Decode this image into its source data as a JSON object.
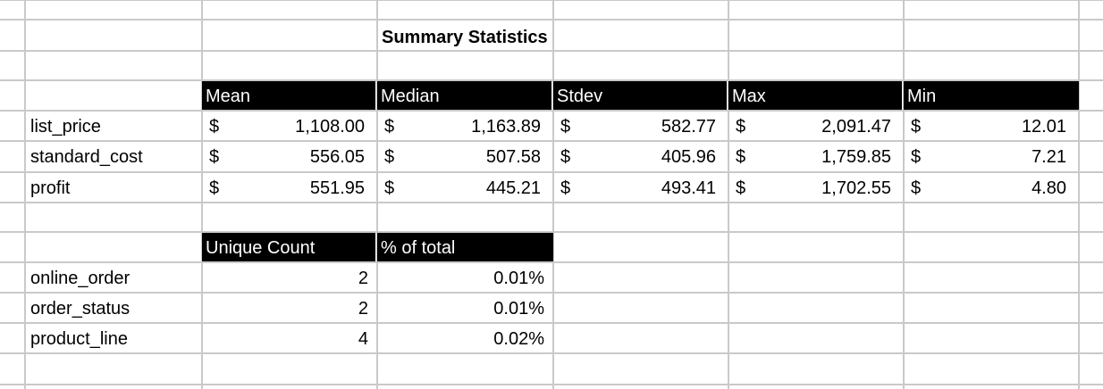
{
  "title": "Summary Statistics",
  "stats_headers": [
    "Mean",
    "Median",
    "Stdev",
    "Max",
    "Min"
  ],
  "currency_symbol": "$",
  "stats_rows": [
    {
      "label": "list_price",
      "values": [
        "1,108.00",
        "1,163.89",
        "582.77",
        "2,091.47",
        "12.01"
      ]
    },
    {
      "label": "standard_cost",
      "values": [
        "556.05",
        "507.58",
        "405.96",
        "1,759.85",
        "7.21"
      ]
    },
    {
      "label": "profit",
      "values": [
        "551.95",
        "445.21",
        "493.41",
        "1,702.55",
        "4.80"
      ]
    }
  ],
  "count_headers": [
    "Unique Count",
    "% of total"
  ],
  "count_rows": [
    {
      "label": "online_order",
      "count": "2",
      "pct": "0.01%"
    },
    {
      "label": "order_status",
      "count": "2",
      "pct": "0.01%"
    },
    {
      "label": "product_line",
      "count": "4",
      "pct": "0.02%"
    }
  ]
}
